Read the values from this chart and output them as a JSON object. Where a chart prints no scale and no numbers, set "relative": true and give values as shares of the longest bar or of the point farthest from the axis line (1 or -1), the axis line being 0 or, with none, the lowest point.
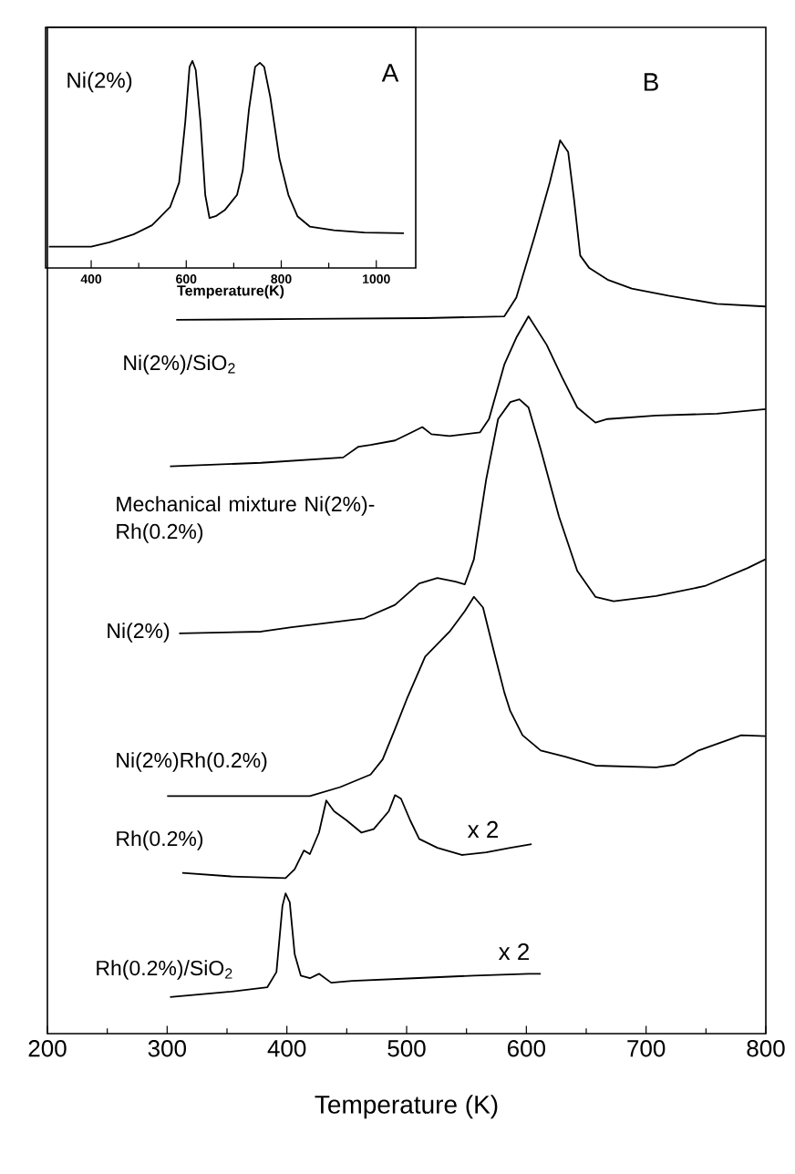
{
  "chart_data": [
    {
      "type": "line",
      "relative": true,
      "xlim": [
        304,
        1083
      ],
      "xticks": [
        400,
        600,
        800,
        1000
      ],
      "xlabel": "Temperature(K)",
      "tick_labels": "x",
      "annotations": [
        "A"
      ],
      "series": [
        {
          "name": "Ni(2%)",
          "color": "#000000",
          "x": [
            311,
            400,
            438,
            489,
            528,
            566,
            585,
            598,
            607,
            613,
            620,
            630,
            640,
            649,
            662,
            681,
            707,
            719,
            732,
            745,
            755,
            764,
            777,
            796,
            815,
            834,
            860,
            911,
            975,
            1058
          ],
          "values": [
            0.103,
            0.103,
            0.124,
            0.162,
            0.206,
            0.294,
            0.412,
            0.706,
            0.971,
            1.0,
            0.956,
            0.706,
            0.353,
            0.241,
            0.25,
            0.279,
            0.353,
            0.471,
            0.765,
            0.971,
            0.991,
            0.971,
            0.824,
            0.529,
            0.353,
            0.25,
            0.2,
            0.182,
            0.171,
            0.168
          ]
        }
      ]
    },
    {
      "type": "line",
      "relative": true,
      "xlim": [
        200,
        800
      ],
      "xticks": [
        200,
        300,
        400,
        500,
        600,
        700,
        800
      ],
      "xlabel": "Temperature (K)",
      "tick_labels": "x",
      "annotations": [
        "B",
        "x 2",
        "x 2"
      ],
      "series": [
        {
          "name": "Ni(2%)/SiO$_{2}$",
          "color": "#000000",
          "x": [
            307.6,
            414.2,
            515.5,
            581.6,
            591.6,
            606.8,
            619.6,
            628.2,
            634.9,
            639.9,
            645,
            652.6,
            667.8,
            688.1,
            718.6,
            759.1,
            799.7
          ],
          "values": [
            0.799,
            0.8,
            0.801,
            0.803,
            0.824,
            0.892,
            0.953,
            1.0,
            0.987,
            0.933,
            0.871,
            0.857,
            0.844,
            0.834,
            0.826,
            0.817,
            0.814
          ]
        },
        {
          "name": "Mechanical mixture Ni(2%)-Rh(0.2%)",
          "color": "#000000",
          "x": [
            302.4,
            378.5,
            447,
            459.8,
            469.9,
            490.3,
            505.5,
            513.1,
            520.7,
            535.9,
            561.2,
            568.8,
            581.6,
            591.6,
            601.8,
            617,
            629.7,
            642.5,
            657.7,
            667.7,
            708.4,
            759.1,
            799.7
          ],
          "values": [
            0.635,
            0.639,
            0.645,
            0.657,
            0.659,
            0.664,
            0.674,
            0.679,
            0.671,
            0.669,
            0.673,
            0.688,
            0.749,
            0.779,
            0.803,
            0.771,
            0.735,
            0.701,
            0.684,
            0.688,
            0.692,
            0.694,
            0.699
          ]
        },
        {
          "name": "Ni(2%)",
          "color": "#000000",
          "x": [
            310,
            378.5,
            404,
            429.4,
            464.8,
            490.3,
            510.5,
            525.7,
            540.9,
            548.6,
            556.2,
            566.4,
            576.4,
            586.6,
            594.2,
            601.8,
            612,
            627.2,
            642.5,
            657.7,
            672.9,
            708.4,
            749,
            784.5,
            799.7
          ],
          "values": [
            0.448,
            0.45,
            0.455,
            0.459,
            0.465,
            0.48,
            0.504,
            0.51,
            0.506,
            0.503,
            0.531,
            0.62,
            0.688,
            0.707,
            0.71,
            0.701,
            0.654,
            0.579,
            0.518,
            0.489,
            0.484,
            0.49,
            0.501,
            0.521,
            0.531
          ]
        },
        {
          "name": "Ni(2%)Rh(0.2%)",
          "color": "#000000",
          "x": [
            300,
            419.2,
            444.6,
            469.9,
            480,
            490.3,
            500.3,
            515.5,
            535.9,
            548.6,
            556.2,
            563.8,
            574,
            581.6,
            586.6,
            596.8,
            612,
            632.3,
            657.7,
            708.4,
            723.6,
            743.8,
            779.5,
            799.7
          ],
          "values": [
            0.266,
            0.266,
            0.276,
            0.29,
            0.307,
            0.341,
            0.375,
            0.422,
            0.45,
            0.473,
            0.489,
            0.477,
            0.422,
            0.382,
            0.361,
            0.334,
            0.317,
            0.31,
            0.3,
            0.298,
            0.301,
            0.317,
            0.334,
            0.333
          ]
        },
        {
          "name": "Rh(0.2%)",
          "color": "#000000",
          "x": [
            312.6,
            353.3,
            398.9,
            406.5,
            414.2,
            419.2,
            426.8,
            432.9,
            439.4,
            449.6,
            462.3,
            472.5,
            485.1,
            490.3,
            495.3,
            502.9,
            510.5,
            525.7,
            546,
            566.4,
            586.6,
            604.4
          ],
          "values": [
            0.18,
            0.176,
            0.174,
            0.184,
            0.205,
            0.201,
            0.225,
            0.261,
            0.249,
            0.239,
            0.225,
            0.229,
            0.249,
            0.267,
            0.263,
            0.239,
            0.218,
            0.208,
            0.2,
            0.203,
            0.208,
            0.212
          ]
        },
        {
          "name": "Rh(0.2%)/SiO$_{2}$",
          "color": "#000000",
          "x": [
            302.4,
            353.3,
            383.7,
            391.3,
            396.3,
            398.9,
            402.4,
            406.5,
            411.6,
            419.2,
            426.8,
            437,
            454.6,
            505.5,
            556.2,
            601.8,
            612
          ],
          "values": [
            0.041,
            0.047,
            0.052,
            0.069,
            0.143,
            0.157,
            0.147,
            0.089,
            0.065,
            0.062,
            0.067,
            0.057,
            0.059,
            0.062,
            0.065,
            0.067,
            0.067
          ]
        }
      ]
    }
  ]
}
